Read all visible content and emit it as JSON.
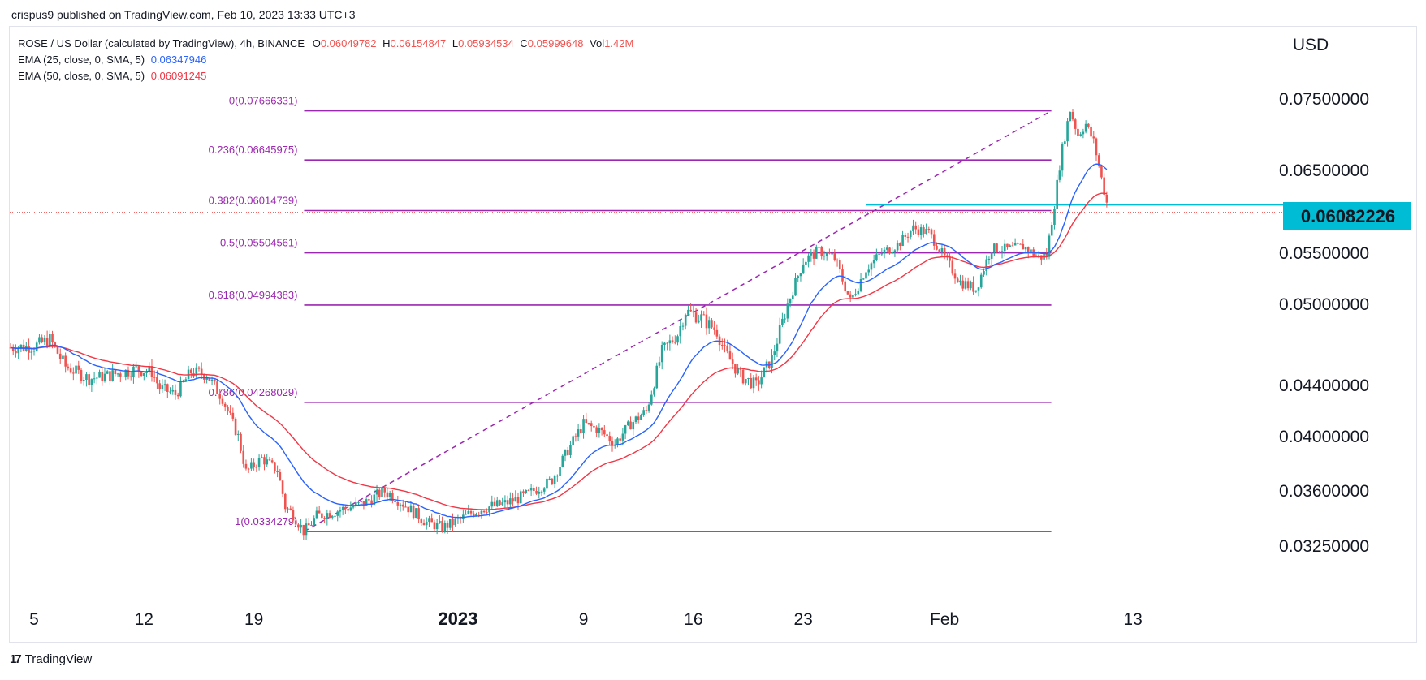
{
  "header": {
    "published_by": "crispus9 published on TradingView.com, Feb 10, 2023 13:33 UTC+3"
  },
  "legend": {
    "symbol": "ROSE / US Dollar (calculated by TradingView), 4h, BINANCE",
    "open_label": "O",
    "open": "0.06049782",
    "high_label": "H",
    "high": "0.06154847",
    "low_label": "L",
    "low": "0.05934534",
    "close_label": "C",
    "close": "0.05999648",
    "vol_label": "Vol",
    "vol": "1.42M",
    "ema25_label": "EMA (25, close, 0, SMA, 5)",
    "ema25_value": "0.06347946",
    "ema50_label": "EMA (50, close, 0, SMA, 5)",
    "ema50_value": "0.06091245"
  },
  "footer": {
    "brand": "TradingView",
    "logo_text": "17"
  },
  "colors": {
    "up": "#26a69a",
    "down": "#ef5350",
    "ema25": "#2962ff",
    "ema50": "#f23645",
    "fib": "#9c27b0",
    "level": "#00bcd4",
    "price_badge": "#00bcd4",
    "text": "#131722"
  },
  "chart_data": {
    "type": "candlestick",
    "currency_label": "USD",
    "y_ticks": [
      "0.07500000",
      "0.06500000",
      "0.05500000",
      "0.05000000",
      "0.04400000",
      "0.04000000",
      "0.03600000",
      "0.03250000"
    ],
    "y_tick_values": [
      0.075,
      0.065,
      0.055,
      0.05,
      0.044,
      0.04,
      0.036,
      0.0325
    ],
    "x_ticks": [
      {
        "label": "5",
        "day": 5,
        "bold": false
      },
      {
        "label": "12",
        "day": 12,
        "bold": false
      },
      {
        "label": "19",
        "day": 19,
        "bold": false
      },
      {
        "label": "2023",
        "day": 32,
        "bold": true
      },
      {
        "label": "9",
        "day": 40,
        "bold": false
      },
      {
        "label": "16",
        "day": 47,
        "bold": false
      },
      {
        "label": "23",
        "day": 54,
        "bold": false
      },
      {
        "label": "Feb",
        "day": 63,
        "bold": false
      },
      {
        "label": "13",
        "day": 75,
        "bold": false
      }
    ],
    "current_price": "0.06082226",
    "current_price_value": 0.06082226,
    "horizontal_level": 0.06082226,
    "fibonacci": {
      "start": {
        "day": 22.2,
        "price": 0.0334279
      },
      "end": {
        "day": 69.8,
        "price": 0.07666331
      },
      "levels": [
        {
          "ratio": "0",
          "price": "0.07666331"
        },
        {
          "ratio": "0.236",
          "price": "0.06645975"
        },
        {
          "ratio": "0.382",
          "price": "0.06014739"
        },
        {
          "ratio": "0.5",
          "price": "0.05504561"
        },
        {
          "ratio": "0.618",
          "price": "0.04994383"
        },
        {
          "ratio": "0.786",
          "price": "0.04268029"
        },
        {
          "ratio": "1",
          "price": "0.0334279"
        }
      ]
    },
    "price_path": [
      [
        3.5,
        0.0468
      ],
      [
        5,
        0.0469
      ],
      [
        6,
        0.0474
      ],
      [
        7,
        0.0454
      ],
      [
        8.5,
        0.0445
      ],
      [
        10,
        0.0448
      ],
      [
        11.5,
        0.0452
      ],
      [
        12.5,
        0.045
      ],
      [
        13,
        0.0438
      ],
      [
        14,
        0.0433
      ],
      [
        15,
        0.045
      ],
      [
        16,
        0.0448
      ],
      [
        17,
        0.043
      ],
      [
        18,
        0.04
      ],
      [
        18.5,
        0.0374
      ],
      [
        19.5,
        0.0384
      ],
      [
        20.5,
        0.0375
      ],
      [
        21,
        0.035
      ],
      [
        21.5,
        0.0345
      ],
      [
        22.2,
        0.0334
      ],
      [
        23,
        0.0344
      ],
      [
        24.5,
        0.0348
      ],
      [
        26,
        0.0352
      ],
      [
        27.3,
        0.036
      ],
      [
        28,
        0.0356
      ],
      [
        29,
        0.0348
      ],
      [
        30,
        0.034
      ],
      [
        31,
        0.0337
      ],
      [
        32,
        0.0341
      ],
      [
        33,
        0.0347
      ],
      [
        34,
        0.035
      ],
      [
        35,
        0.0352
      ],
      [
        36.5,
        0.0358
      ],
      [
        38,
        0.0368
      ],
      [
        39,
        0.039
      ],
      [
        40,
        0.041
      ],
      [
        41,
        0.0405
      ],
      [
        42,
        0.0395
      ],
      [
        43,
        0.041
      ],
      [
        44,
        0.042
      ],
      [
        45,
        0.0465
      ],
      [
        46,
        0.0478
      ],
      [
        46.5,
        0.0495
      ],
      [
        47.5,
        0.049
      ],
      [
        48.5,
        0.048
      ],
      [
        49,
        0.0465
      ],
      [
        50,
        0.0447
      ],
      [
        51,
        0.044
      ],
      [
        52,
        0.046
      ],
      [
        53,
        0.05
      ],
      [
        54,
        0.0542
      ],
      [
        55,
        0.0553
      ],
      [
        56,
        0.0545
      ],
      [
        57,
        0.0503
      ],
      [
        58,
        0.0535
      ],
      [
        59,
        0.055
      ],
      [
        60,
        0.056
      ],
      [
        61,
        0.058
      ],
      [
        62,
        0.0575
      ],
      [
        63,
        0.0545
      ],
      [
        64,
        0.0522
      ],
      [
        65,
        0.0515
      ],
      [
        66,
        0.0556
      ],
      [
        67,
        0.0555
      ],
      [
        68,
        0.0558
      ],
      [
        69,
        0.0546
      ],
      [
        69.5,
        0.0548
      ],
      [
        70,
        0.061
      ],
      [
        70.5,
        0.068
      ],
      [
        71,
        0.0735
      ],
      [
        71.5,
        0.07
      ],
      [
        72,
        0.0715
      ],
      [
        72.5,
        0.069
      ],
      [
        73,
        0.064
      ],
      [
        73.4,
        0.0605
      ]
    ]
  }
}
